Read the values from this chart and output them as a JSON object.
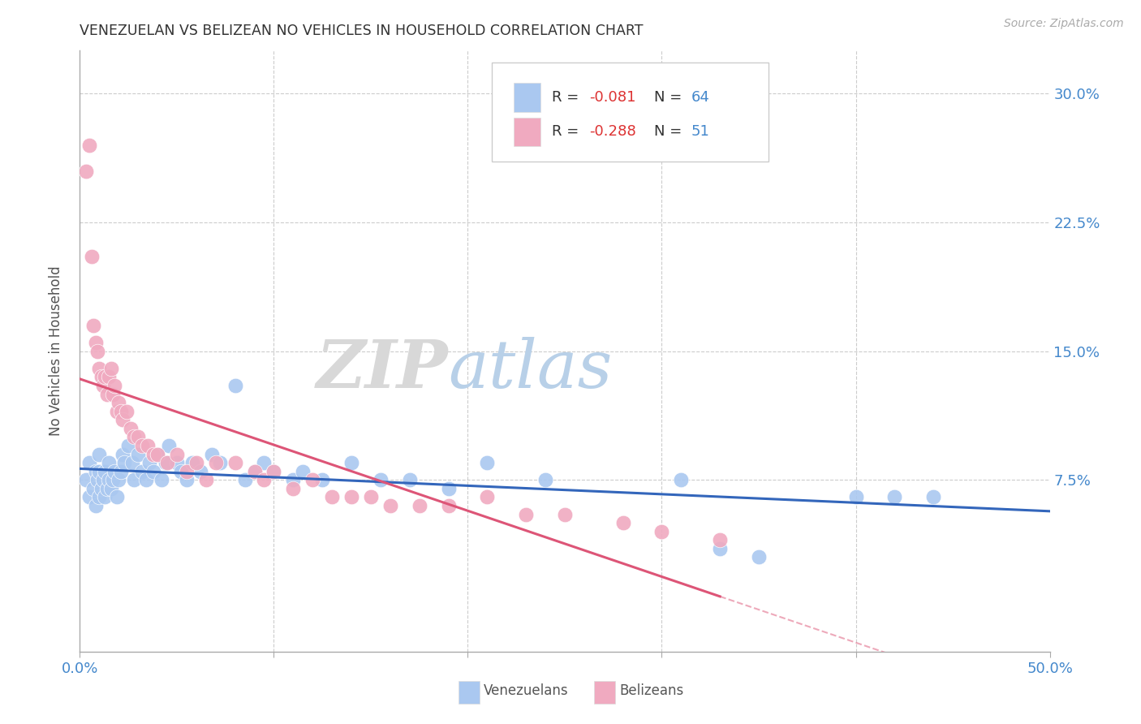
{
  "title": "VENEZUELAN VS BELIZEAN NO VEHICLES IN HOUSEHOLD CORRELATION CHART",
  "source": "Source: ZipAtlas.com",
  "ylabel": "No Vehicles in Household",
  "xlim": [
    0.0,
    0.5
  ],
  "ylim": [
    -0.025,
    0.325
  ],
  "ytick_positions": [
    0.075,
    0.15,
    0.225,
    0.3
  ],
  "ytick_labels": [
    "7.5%",
    "15.0%",
    "22.5%",
    "30.0%"
  ],
  "xtick_positions": [
    0.0,
    0.1,
    0.2,
    0.3,
    0.4,
    0.5
  ],
  "xtick_labels": [
    "0.0%",
    "",
    "",
    "",
    "",
    "50.0%"
  ],
  "blue_color": "#aac8f0",
  "pink_color": "#f0aac0",
  "line_blue": "#3366bb",
  "line_pink": "#dd5577",
  "watermark_zip": "ZIP",
  "watermark_atlas": "atlas",
  "venezuelan_x": [
    0.003,
    0.005,
    0.005,
    0.007,
    0.008,
    0.008,
    0.009,
    0.01,
    0.01,
    0.01,
    0.011,
    0.012,
    0.013,
    0.013,
    0.014,
    0.015,
    0.015,
    0.016,
    0.017,
    0.018,
    0.019,
    0.02,
    0.021,
    0.022,
    0.023,
    0.025,
    0.027,
    0.028,
    0.03,
    0.032,
    0.034,
    0.036,
    0.038,
    0.04,
    0.042,
    0.044,
    0.046,
    0.05,
    0.052,
    0.055,
    0.058,
    0.062,
    0.068,
    0.072,
    0.08,
    0.085,
    0.09,
    0.095,
    0.1,
    0.11,
    0.115,
    0.125,
    0.14,
    0.155,
    0.17,
    0.19,
    0.21,
    0.24,
    0.31,
    0.33,
    0.35,
    0.4,
    0.42,
    0.44
  ],
  "venezuelan_y": [
    0.075,
    0.065,
    0.085,
    0.07,
    0.08,
    0.06,
    0.075,
    0.065,
    0.08,
    0.09,
    0.07,
    0.075,
    0.08,
    0.065,
    0.07,
    0.075,
    0.085,
    0.07,
    0.075,
    0.08,
    0.065,
    0.075,
    0.08,
    0.09,
    0.085,
    0.095,
    0.085,
    0.075,
    0.09,
    0.08,
    0.075,
    0.085,
    0.08,
    0.09,
    0.075,
    0.085,
    0.095,
    0.085,
    0.08,
    0.075,
    0.085,
    0.08,
    0.09,
    0.085,
    0.13,
    0.075,
    0.08,
    0.085,
    0.08,
    0.075,
    0.08,
    0.075,
    0.085,
    0.075,
    0.075,
    0.07,
    0.085,
    0.075,
    0.075,
    0.035,
    0.03,
    0.065,
    0.065,
    0.065
  ],
  "belizean_x": [
    0.003,
    0.005,
    0.006,
    0.007,
    0.008,
    0.009,
    0.01,
    0.011,
    0.012,
    0.013,
    0.014,
    0.015,
    0.016,
    0.017,
    0.018,
    0.019,
    0.02,
    0.021,
    0.022,
    0.024,
    0.026,
    0.028,
    0.03,
    0.032,
    0.035,
    0.038,
    0.04,
    0.045,
    0.05,
    0.055,
    0.06,
    0.065,
    0.07,
    0.08,
    0.09,
    0.095,
    0.1,
    0.11,
    0.12,
    0.13,
    0.14,
    0.15,
    0.16,
    0.175,
    0.19,
    0.21,
    0.23,
    0.25,
    0.28,
    0.3,
    0.33
  ],
  "belizean_y": [
    0.255,
    0.27,
    0.205,
    0.165,
    0.155,
    0.15,
    0.14,
    0.135,
    0.13,
    0.135,
    0.125,
    0.135,
    0.14,
    0.125,
    0.13,
    0.115,
    0.12,
    0.115,
    0.11,
    0.115,
    0.105,
    0.1,
    0.1,
    0.095,
    0.095,
    0.09,
    0.09,
    0.085,
    0.09,
    0.08,
    0.085,
    0.075,
    0.085,
    0.085,
    0.08,
    0.075,
    0.08,
    0.07,
    0.075,
    0.065,
    0.065,
    0.065,
    0.06,
    0.06,
    0.06,
    0.065,
    0.055,
    0.055,
    0.05,
    0.045,
    0.04
  ]
}
